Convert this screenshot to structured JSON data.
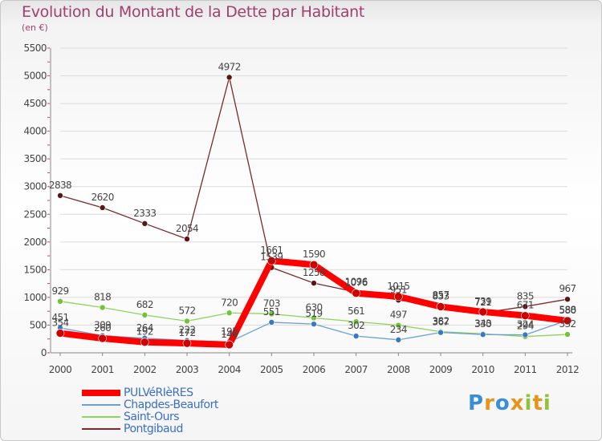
{
  "header": {
    "title": "Evolution du Montant de la Dette par Habitant",
    "subtitle": "(en €)"
  },
  "logo": {
    "text": "Proxiti"
  },
  "chart_data": {
    "type": "line",
    "title": "Evolution du Montant de la Dette par Habitant",
    "ylabel": "(en €)",
    "xlabel": "",
    "ylim": [
      0,
      5500
    ],
    "yticks": [
      0,
      500,
      1000,
      1500,
      2000,
      2500,
      3000,
      3500,
      4000,
      4500,
      5000,
      5500
    ],
    "categories": [
      "2000",
      "2001",
      "2002",
      "2003",
      "2004",
      "2005",
      "2006",
      "2007",
      "2008",
      "2009",
      "2010",
      "2011",
      "2012"
    ],
    "legend_position": "bottom-left",
    "series": [
      {
        "name": "Pontgibaud",
        "color": "#7a2a2a",
        "values": [
          2838,
          2620,
          2333,
          2054,
          4972,
          1539,
          1258,
          1096,
          951,
          857,
          721,
          835,
          967
        ]
      },
      {
        "name": "Saint-Ours",
        "color": "#8fd45a",
        "values": [
          929,
          818,
          682,
          572,
          720,
          703,
          630,
          561,
          497,
          382,
          343,
          294,
          332
        ]
      },
      {
        "name": "Chapdes-Beaufort",
        "color": "#6b9fd6",
        "values": [
          451,
          309,
          264,
          222,
          195,
          551,
          519,
          302,
          234,
          367,
          330,
          324,
          588
        ]
      },
      {
        "name": "PULVéRIèRES",
        "color": "#ff0000",
        "values": [
          354,
          260,
          192,
          172,
          146,
          1661,
          1590,
          1076,
          1015,
          833,
          739,
          671,
          580
        ]
      }
    ]
  }
}
